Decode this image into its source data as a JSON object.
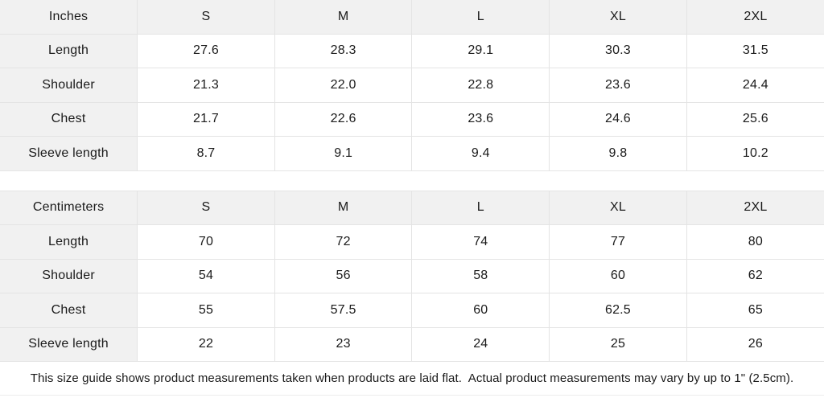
{
  "page": {
    "background": "#ffffff",
    "text_color": "#1a1a1a",
    "header_cell_bg": "#f1f1f1",
    "border_color": "#e4e4e4"
  },
  "size_guide": {
    "columns": [
      "S",
      "M",
      "L",
      "XL",
      "2XL"
    ],
    "tables": [
      {
        "unit_label": "Inches",
        "rows": [
          {
            "label": "Length",
            "values": [
              "27.6",
              "28.3",
              "29.1",
              "30.3",
              "31.5"
            ]
          },
          {
            "label": "Shoulder",
            "values": [
              "21.3",
              "22.0",
              "22.8",
              "23.6",
              "24.4"
            ]
          },
          {
            "label": "Chest",
            "values": [
              "21.7",
              "22.6",
              "23.6",
              "24.6",
              "25.6"
            ]
          },
          {
            "label": "Sleeve length",
            "values": [
              "8.7",
              "9.1",
              "9.4",
              "9.8",
              "10.2"
            ]
          }
        ]
      },
      {
        "unit_label": "Centimeters",
        "rows": [
          {
            "label": "Length",
            "values": [
              "70",
              "72",
              "74",
              "77",
              "80"
            ]
          },
          {
            "label": "Shoulder",
            "values": [
              "54",
              "56",
              "58",
              "60",
              "62"
            ]
          },
          {
            "label": "Chest",
            "values": [
              "55",
              "57.5",
              "60",
              "62.5",
              "65"
            ]
          },
          {
            "label": "Sleeve length",
            "values": [
              "22",
              "23",
              "24",
              "25",
              "26"
            ]
          }
        ]
      }
    ],
    "footnote": "This size guide shows product measurements taken when products are laid flat.  Actual product measurements may vary by up to 1\" (2.5cm)."
  }
}
